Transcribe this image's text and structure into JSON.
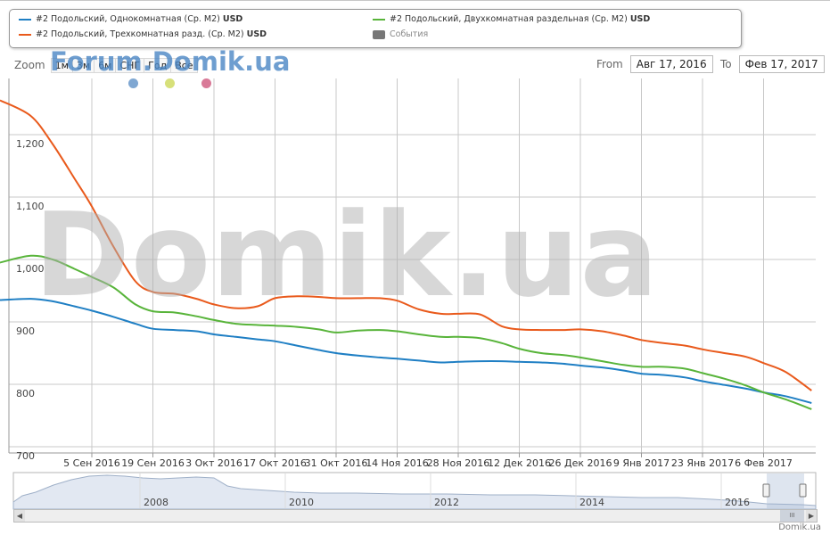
{
  "legend": {
    "items": [
      {
        "label": "#2 Подольский, Однокомнатная (Ср. M2)",
        "unit": "USD",
        "color": "#1f7fc4"
      },
      {
        "label": "#2 Подольский, Двухкомнатная раздельная (Ср. M2)",
        "unit": "USD",
        "color": "#58b43a"
      },
      {
        "label": "#2 Подольский, Трехкомнатная разд. (Ср. M2)",
        "unit": "USD",
        "color": "#e95a1c"
      },
      {
        "label": "События",
        "unit": "",
        "color": "#777777"
      }
    ]
  },
  "zoom": {
    "label": "Zoom",
    "buttons": [
      "1м",
      "3м",
      "6м",
      "СНГ",
      "Год",
      "Все"
    ]
  },
  "range": {
    "from_label": "From",
    "from_value": "Авг 17, 2016",
    "to_label": "To",
    "to_value": "Фев 17, 2017"
  },
  "watermarks": {
    "big": "Domik.ua",
    "forum": "Forum.Domik.ua"
  },
  "events": [
    {
      "color": "#7fa7d2"
    },
    {
      "color": "#d7e07a"
    },
    {
      "color": "#d97a98"
    }
  ],
  "credit": "Domik.ua",
  "chart_data": {
    "type": "line",
    "title": "",
    "xlabel": "",
    "ylabel": "",
    "ylim": [
      690,
      1320
    ],
    "grid": true,
    "y_ticks": [
      "700",
      "800",
      "900",
      "1,000",
      "1,100",
      "1,200"
    ],
    "x_ticks": [
      "5 Сен 2016",
      "19 Сен 2016",
      "3 Окт 2016",
      "17 Окт 2016",
      "31 Окт 2016",
      "14 Ноя 2016",
      "28 Ноя 2016",
      "12 Дек 2016",
      "26 Дек 2016",
      "9 Янв 2017",
      "23 Янв 2017",
      "6 Фев 2017"
    ],
    "x": [
      "2016-08-17",
      "2016-08-22",
      "2016-08-27",
      "2016-09-01",
      "2016-09-05",
      "2016-09-10",
      "2016-09-15",
      "2016-09-19",
      "2016-09-24",
      "2016-09-29",
      "2016-10-03",
      "2016-10-08",
      "2016-10-13",
      "2016-10-17",
      "2016-10-22",
      "2016-10-27",
      "2016-10-31",
      "2016-11-05",
      "2016-11-10",
      "2016-11-14",
      "2016-11-19",
      "2016-11-24",
      "2016-11-28",
      "2016-12-03",
      "2016-12-08",
      "2016-12-12",
      "2016-12-17",
      "2016-12-22",
      "2016-12-26",
      "2016-12-31",
      "2017-01-05",
      "2017-01-09",
      "2017-01-14",
      "2017-01-19",
      "2017-01-23",
      "2017-01-28",
      "2017-02-02",
      "2017-02-06",
      "2017-02-11",
      "2017-02-17"
    ],
    "series": [
      {
        "name": "#2 Подольский, Однокомнатная (Ср. M2) USD",
        "color": "#1f7fc4",
        "values": [
          935,
          937,
          933,
          925,
          918,
          908,
          897,
          889,
          887,
          885,
          880,
          876,
          872,
          869,
          862,
          855,
          850,
          846,
          843,
          841,
          838,
          835,
          836,
          837,
          837,
          836,
          835,
          833,
          830,
          827,
          822,
          817,
          815,
          811,
          805,
          799,
          793,
          787,
          781,
          770
        ]
      },
      {
        "name": "#2 Подольский, Двухкомнатная раздельная (Ср. M2) USD",
        "color": "#58b43a",
        "values": [
          995,
          1006,
          1000,
          985,
          972,
          955,
          928,
          917,
          915,
          909,
          903,
          897,
          895,
          894,
          892,
          888,
          883,
          886,
          887,
          885,
          880,
          876,
          876,
          874,
          866,
          857,
          850,
          847,
          843,
          837,
          831,
          828,
          828,
          825,
          818,
          809,
          798,
          787,
          776,
          760
        ]
      },
      {
        "name": "#2 Подольский, Трехкомнатная разд. (Ср. M2) USD",
        "color": "#e95a1c",
        "values": [
          1255,
          1230,
          1185,
          1130,
          1085,
          1020,
          965,
          948,
          945,
          937,
          928,
          922,
          925,
          938,
          941,
          940,
          938,
          938,
          938,
          934,
          920,
          913,
          913,
          912,
          893,
          888,
          887,
          887,
          888,
          885,
          878,
          871,
          866,
          862,
          856,
          850,
          844,
          834,
          820,
          790
        ]
      }
    ]
  },
  "navigator": {
    "years": [
      "2008",
      "2010",
      "2012",
      "2014",
      "2016"
    ],
    "scroll_thumb_label": "III"
  }
}
